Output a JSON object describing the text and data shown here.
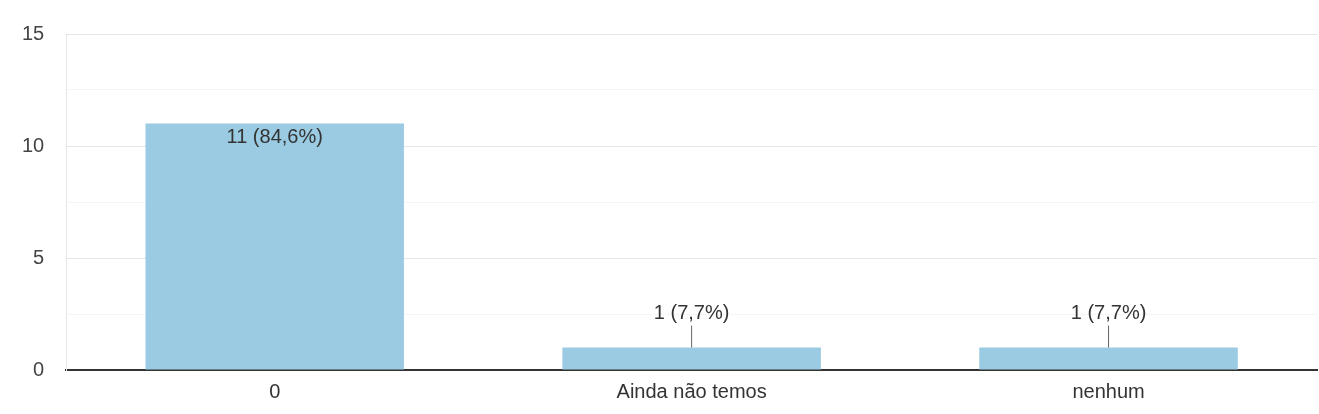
{
  "chart_data": {
    "type": "bar",
    "categories": [
      "0",
      "Ainda não temos",
      "nenhum"
    ],
    "values": [
      11,
      1,
      1
    ],
    "color": "#9acbe3",
    "value_labels": [
      "11 (84,6%)",
      "1 (7,7%)",
      "1 (7,7%)"
    ],
    "ylim": [
      0,
      15
    ],
    "yticks": [
      0,
      {
        "value": 2.5,
        "label": null
      },
      5,
      {
        "value": 7.5,
        "label": null
      },
      10,
      {
        "value": 12.5,
        "label": null
      },
      15
    ],
    "grid": "y",
    "legend": false
  }
}
